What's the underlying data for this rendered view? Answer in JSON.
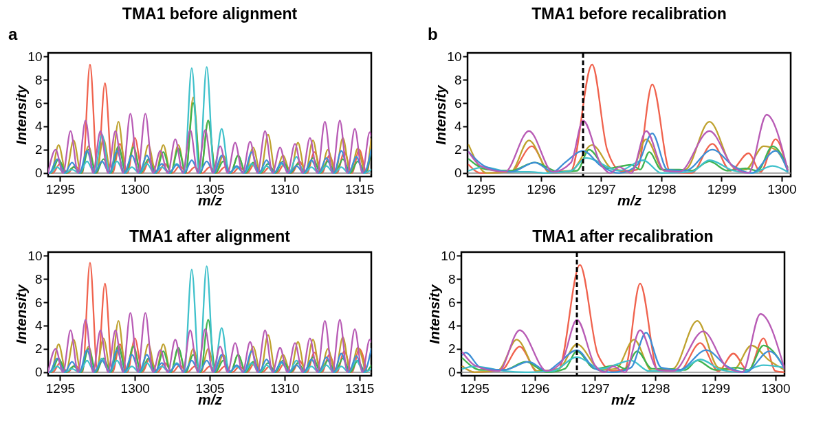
{
  "chart_data": [
    {
      "type": "line",
      "title": "TMA1 before alignment",
      "xlabel": "m/z",
      "ylabel": "Intensity",
      "annotations": [
        "a"
      ],
      "xlim": [
        1294.2,
        1315.8
      ],
      "xticks": [
        1295,
        1300,
        1305,
        1310,
        1315
      ],
      "ylim": [
        -0.3,
        10.3
      ],
      "yticks": [
        0,
        2,
        4,
        6,
        8,
        10
      ],
      "ref_lines": [
        {
          "axis": "y",
          "value": 0,
          "color": "#888888",
          "line_style": "solid"
        }
      ],
      "series": [
        {
          "color": "#f0624d",
          "x": [
            1294.2,
            1294.5,
            1295,
            1295.5,
            1296,
            1296.5,
            1297,
            1297.5,
            1298,
            1298.5,
            1299,
            1299.5,
            1300,
            1300.5,
            1301,
            1301.5,
            1302,
            1302.5,
            1303,
            1303.5,
            1304,
            1304.5,
            1305,
            1305.5,
            1306,
            1306.5,
            1307,
            1307.5,
            1308,
            1308.5,
            1309,
            1309.5,
            1310,
            1310.5,
            1311,
            1311.5,
            1312,
            1312.5,
            1313,
            1313.5,
            1314,
            1314.5,
            1315,
            1315.5,
            1315.8
          ],
          "values": [
            0,
            0,
            0.8,
            0,
            0.6,
            0,
            9.3,
            0,
            7.7,
            0,
            2.5,
            0,
            3.0,
            0,
            1.2,
            0,
            0.8,
            0,
            0.6,
            0,
            0.5,
            0,
            0.5,
            0,
            0.5,
            0,
            0.5,
            0,
            0.8,
            0,
            0.5,
            0,
            0.8,
            0,
            1.0,
            0,
            1.8,
            0,
            1.5,
            0,
            1.8,
            0,
            2.0,
            0,
            2.9
          ]
        },
        {
          "color": "#bfa22e",
          "x": [
            1294.2,
            1294.4,
            1294.9,
            1295.4,
            1295.9,
            1296.4,
            1296.9,
            1297.4,
            1297.9,
            1298.4,
            1298.9,
            1299.4,
            1299.9,
            1300.4,
            1300.9,
            1301.4,
            1301.9,
            1302.4,
            1302.9,
            1303.4,
            1303.9,
            1304.4,
            1304.9,
            1305.4,
            1305.9,
            1306.4,
            1306.9,
            1307.4,
            1307.9,
            1308.4,
            1308.9,
            1309.4,
            1309.9,
            1310.4,
            1310.9,
            1311.4,
            1311.9,
            1312.4,
            1312.9,
            1313.4,
            1313.9,
            1314.4,
            1314.9,
            1315.4,
            1315.8
          ],
          "values": [
            0,
            0,
            2.4,
            0,
            2.8,
            0,
            2.3,
            0,
            2.9,
            0,
            4.4,
            0,
            2.3,
            0,
            2.4,
            0,
            2.4,
            0,
            2.4,
            0,
            6.5,
            0,
            4.5,
            0,
            1.5,
            0,
            1.5,
            0,
            2.2,
            0,
            3.3,
            0,
            1.5,
            0,
            2.6,
            0,
            2.8,
            0,
            2.0,
            0,
            3.0,
            0,
            2.1,
            0,
            2.9
          ]
        },
        {
          "color": "#3fb34f",
          "x": [
            1294.2,
            1294.4,
            1294.9,
            1295.4,
            1295.9,
            1296.4,
            1296.9,
            1297.4,
            1297.9,
            1298.4,
            1298.9,
            1299.4,
            1299.9,
            1300.4,
            1300.9,
            1301.4,
            1301.9,
            1302.4,
            1302.9,
            1303.4,
            1303.9,
            1304.4,
            1304.9,
            1305.4,
            1305.9,
            1306.4,
            1306.9,
            1307.4,
            1307.9,
            1308.4,
            1308.9,
            1309.4,
            1309.9,
            1310.4,
            1310.9,
            1311.4,
            1311.9,
            1312.4,
            1312.9,
            1313.4,
            1313.9,
            1314.4,
            1314.9,
            1315.4,
            1315.8
          ],
          "values": [
            0,
            0,
            1.2,
            0,
            0.5,
            0,
            2.0,
            0,
            1.2,
            0,
            2.3,
            0,
            2.2,
            0,
            1.2,
            0,
            1.8,
            0,
            2.1,
            0,
            6.0,
            0,
            4.5,
            0,
            1.0,
            0,
            1.5,
            0,
            0.9,
            0,
            0.8,
            0,
            1.0,
            0,
            0.8,
            0,
            1.3,
            0,
            1.0,
            0,
            1.2,
            0,
            1.0,
            0,
            2.0
          ]
        },
        {
          "color": "#3fc1cb",
          "x": [
            1294.2,
            1294.3,
            1294.8,
            1295.3,
            1295.8,
            1296.3,
            1296.8,
            1297.3,
            1297.8,
            1298.3,
            1298.8,
            1299.3,
            1299.8,
            1300.3,
            1300.8,
            1301.3,
            1301.8,
            1302.3,
            1302.8,
            1303.3,
            1303.8,
            1304.3,
            1304.8,
            1305.3,
            1305.8,
            1306.3,
            1306.8,
            1307.3,
            1307.8,
            1308.3,
            1308.8,
            1309.3,
            1309.8,
            1310.3,
            1310.8,
            1311.3,
            1311.8,
            1312.3,
            1312.8,
            1313.3,
            1313.8,
            1314.3,
            1314.8,
            1315.3,
            1315.8
          ],
          "values": [
            0,
            0,
            0.5,
            0,
            0.3,
            0,
            1.0,
            0,
            3.3,
            0,
            1.0,
            0,
            0.5,
            0,
            0.8,
            0,
            0.5,
            0,
            0.8,
            0,
            9.0,
            0,
            9.1,
            0,
            3.8,
            0,
            0.5,
            0,
            0.8,
            0,
            0.6,
            0,
            0.8,
            0,
            1.4,
            0,
            0.5,
            0,
            0.6,
            0,
            0.5,
            0,
            1.4,
            0,
            0.3
          ]
        },
        {
          "color": "#3d8fd6",
          "x": [
            1294.2,
            1294.3,
            1294.8,
            1295.3,
            1295.8,
            1296.3,
            1296.8,
            1297.3,
            1297.8,
            1298.3,
            1298.8,
            1299.3,
            1299.8,
            1300.3,
            1300.8,
            1301.3,
            1301.8,
            1302.3,
            1302.8,
            1303.3,
            1303.8,
            1304.3,
            1304.8,
            1305.3,
            1305.8,
            1306.3,
            1306.8,
            1307.3,
            1307.8,
            1308.3,
            1308.8,
            1309.3,
            1309.8,
            1310.3,
            1310.8,
            1311.3,
            1311.8,
            1312.3,
            1312.8,
            1313.3,
            1313.8,
            1314.3,
            1314.8,
            1315.3,
            1315.8
          ],
          "values": [
            0,
            0,
            1.2,
            0,
            0.9,
            0,
            1.9,
            0,
            1.0,
            0,
            1.9,
            0,
            1.5,
            0,
            1.5,
            0,
            0.8,
            0,
            0.7,
            0,
            1.1,
            0,
            1.0,
            0,
            1.5,
            0,
            0.6,
            0,
            1.8,
            0,
            1.1,
            0,
            0.9,
            0,
            0.6,
            0,
            1.1,
            0,
            1.3,
            0,
            1.9,
            0,
            1.4,
            0,
            2.0
          ]
        },
        {
          "color": "#b85bb5",
          "x": [
            1294.2,
            1294.7,
            1295.2,
            1295.7,
            1296.2,
            1296.7,
            1297.2,
            1297.7,
            1298.2,
            1298.7,
            1299.2,
            1299.7,
            1300.2,
            1300.7,
            1301.2,
            1301.7,
            1302.2,
            1302.7,
            1303.2,
            1303.7,
            1304.2,
            1304.7,
            1305.2,
            1305.7,
            1306.2,
            1306.7,
            1307.2,
            1307.7,
            1308.2,
            1308.7,
            1309.2,
            1309.7,
            1310.2,
            1310.7,
            1311.2,
            1311.7,
            1312.2,
            1312.7,
            1313.2,
            1313.7,
            1314.2,
            1314.7,
            1315.2,
            1315.7,
            1315.8
          ],
          "values": [
            0,
            2.0,
            0,
            3.6,
            0,
            4.5,
            0,
            3.6,
            0,
            3.6,
            0,
            5.1,
            0,
            5.1,
            0,
            1.9,
            0,
            2.9,
            0,
            3.7,
            0,
            3.7,
            0,
            2.3,
            0,
            2.6,
            0,
            2.7,
            0,
            3.6,
            0,
            2.2,
            0,
            2.5,
            0,
            3.0,
            0,
            4.4,
            0,
            4.5,
            0,
            3.8,
            0,
            3.5,
            3.2
          ]
        }
      ]
    },
    {
      "type": "line",
      "title": "TMA1 before recalibration",
      "xlabel": "m/z",
      "ylabel": "Intensity",
      "annotations": [
        "b"
      ],
      "xlim": [
        1294.78,
        1300.15
      ],
      "xticks": [
        1295,
        1296,
        1297,
        1298,
        1299,
        1300
      ],
      "ylim": [
        -0.3,
        10.3
      ],
      "yticks": [
        0,
        2,
        4,
        6,
        8,
        10
      ],
      "ref_lines": [
        {
          "axis": "y",
          "value": 0,
          "color": "#888888",
          "line_style": "solid"
        },
        {
          "axis": "x",
          "value": 1296.7,
          "color": "#000000",
          "line_style": "dashed"
        }
      ],
      "series": [
        {
          "color": "#f0624d",
          "x": [
            1294.8,
            1295.0,
            1295.5,
            1295.85,
            1296.15,
            1296.5,
            1296.85,
            1297.1,
            1297.35,
            1297.6,
            1297.85,
            1298.15,
            1298.5,
            1298.85,
            1299.15,
            1299.45,
            1299.65,
            1299.9,
            1300.1
          ],
          "values": [
            0.7,
            0,
            0.1,
            2.3,
            0,
            0.2,
            9.3,
            2.0,
            0.1,
            0.3,
            7.6,
            0.1,
            0,
            2.5,
            0.2,
            1.7,
            0.1,
            2.9,
            0.1
          ]
        },
        {
          "color": "#bfa22e",
          "x": [
            1294.8,
            1295.1,
            1295.5,
            1295.8,
            1296.15,
            1296.5,
            1296.85,
            1297.2,
            1297.5,
            1297.75,
            1298.05,
            1298.4,
            1298.8,
            1299.2,
            1299.4,
            1299.7,
            1299.9,
            1300.1
          ],
          "values": [
            2.4,
            0,
            0.1,
            2.8,
            0.1,
            0.2,
            2.4,
            0.3,
            0.2,
            2.9,
            0.2,
            0.3,
            4.4,
            0.5,
            0.3,
            2.3,
            2.0,
            0.3
          ]
        },
        {
          "color": "#3fb34f",
          "x": [
            1294.8,
            1295.1,
            1295.5,
            1295.9,
            1296.3,
            1296.6,
            1296.8,
            1297.1,
            1297.5,
            1297.65,
            1297.8,
            1298.0,
            1298.3,
            1298.5,
            1298.8,
            1299.1,
            1299.4,
            1299.6,
            1299.85,
            1300.1
          ],
          "values": [
            1.2,
            0.3,
            0.2,
            0.9,
            0.1,
            0.2,
            2.0,
            0.4,
            0.7,
            0.3,
            1.8,
            0.3,
            0.3,
            0.2,
            1.0,
            0.2,
            0.4,
            0.2,
            2.3,
            0.5
          ]
        },
        {
          "color": "#3fc1cb",
          "x": [
            1294.8,
            1295.05,
            1295.5,
            1295.8,
            1296.1,
            1296.5,
            1296.75,
            1297.3,
            1297.7,
            1298.0,
            1298.5,
            1298.8,
            1299.2,
            1299.5,
            1299.85,
            1300.1
          ],
          "values": [
            0.2,
            0.5,
            0.1,
            0.1,
            0,
            0.2,
            1.3,
            0.2,
            1.1,
            0,
            0.1,
            1.1,
            0.2,
            0,
            0.6,
            0.1
          ]
        },
        {
          "color": "#3d8fd6",
          "x": [
            1294.8,
            1295.1,
            1295.5,
            1295.9,
            1296.2,
            1296.4,
            1296.7,
            1297.0,
            1297.3,
            1297.6,
            1297.85,
            1298.1,
            1298.4,
            1298.85,
            1299.2,
            1299.5,
            1299.9,
            1300.1
          ],
          "values": [
            1.8,
            0.5,
            0.1,
            0.9,
            0.1,
            0.9,
            1.9,
            0.6,
            0,
            0.7,
            3.4,
            0.3,
            0.2,
            2.0,
            0.6,
            0,
            1.9,
            0.2
          ]
        },
        {
          "color": "#b85bb5",
          "x": [
            1294.8,
            1295.0,
            1295.4,
            1295.8,
            1296.2,
            1296.5,
            1296.7,
            1297.0,
            1297.15,
            1297.3,
            1297.5,
            1297.75,
            1298.05,
            1298.3,
            1298.8,
            1299.2,
            1299.45,
            1299.75,
            1300.1
          ],
          "values": [
            1.8,
            0.6,
            0.1,
            3.6,
            0.1,
            0.9,
            4.5,
            0.7,
            0,
            0.5,
            0,
            3.6,
            0.2,
            0.1,
            3.6,
            0.5,
            0,
            5.0,
            0.3
          ]
        }
      ]
    },
    {
      "type": "line",
      "title": "TMA1 after alignment",
      "xlabel": "m/z",
      "ylabel": "Intensity",
      "xlim": [
        1294.2,
        1315.8
      ],
      "xticks": [
        1295,
        1300,
        1305,
        1310,
        1315
      ],
      "ylim": [
        -0.3,
        10.3
      ],
      "yticks": [
        0,
        2,
        4,
        6,
        8,
        10
      ],
      "ref_lines": [
        {
          "axis": "y",
          "value": 0,
          "color": "#888888",
          "line_style": "solid"
        }
      ],
      "series": [
        {
          "color": "#f0624d",
          "x": [
            1294.2,
            1294.5,
            1295,
            1295.5,
            1296,
            1296.5,
            1297,
            1297.5,
            1298,
            1298.5,
            1299,
            1299.5,
            1300,
            1300.5,
            1301,
            1301.5,
            1302,
            1302.5,
            1303,
            1303.5,
            1304,
            1304.5,
            1305,
            1305.5,
            1306,
            1306.5,
            1307,
            1307.5,
            1308,
            1308.5,
            1309,
            1309.5,
            1310,
            1310.5,
            1311,
            1311.5,
            1312,
            1312.5,
            1313,
            1313.5,
            1314,
            1314.5,
            1315,
            1315.5
          ],
          "values": [
            0,
            0,
            0.8,
            0,
            0.6,
            0,
            9.4,
            0,
            7.6,
            0,
            2.4,
            0,
            2.9,
            0,
            1.2,
            0,
            0.8,
            0,
            0.6,
            0,
            0.5,
            0,
            0.5,
            0,
            0.5,
            0,
            0.5,
            0,
            0.8,
            0,
            0.5,
            0,
            0.8,
            0,
            1.0,
            0,
            1.7,
            0,
            1.5,
            0,
            1.8,
            0,
            2.0,
            0
          ]
        },
        {
          "color": "#bfa22e",
          "x": [
            1294.2,
            1294.4,
            1294.9,
            1295.4,
            1295.9,
            1296.4,
            1296.9,
            1297.4,
            1297.9,
            1298.4,
            1298.9,
            1299.4,
            1299.9,
            1300.4,
            1300.9,
            1301.4,
            1301.9,
            1302.4,
            1302.9,
            1303.4,
            1303.9,
            1304.4,
            1304.9,
            1305.4,
            1305.9,
            1306.4,
            1306.9,
            1307.4,
            1307.9,
            1308.4,
            1308.9,
            1309.4,
            1309.9,
            1310.4,
            1310.9,
            1311.4,
            1311.9,
            1312.4,
            1312.9,
            1313.4,
            1313.9,
            1314.4,
            1314.9,
            1315.4
          ],
          "values": [
            0,
            0,
            2.4,
            0,
            2.8,
            0,
            2.2,
            0,
            2.9,
            0,
            4.4,
            0,
            2.3,
            0,
            2.4,
            0,
            2.4,
            0,
            2.0,
            0,
            2.0,
            0,
            2.0,
            0,
            1.5,
            0,
            1.5,
            0,
            2.2,
            0,
            3.2,
            0,
            1.5,
            0,
            2.6,
            0,
            2.8,
            0,
            2.0,
            0,
            3.0,
            0,
            2.1,
            0
          ]
        },
        {
          "color": "#3fb34f",
          "x": [
            1294.2,
            1294.4,
            1294.9,
            1295.4,
            1295.9,
            1296.4,
            1296.9,
            1297.4,
            1297.9,
            1298.4,
            1298.9,
            1299.4,
            1299.9,
            1300.4,
            1300.9,
            1301.4,
            1301.9,
            1302.4,
            1302.9,
            1303.4,
            1303.9,
            1304.4,
            1304.9,
            1305.4,
            1305.9,
            1306.4,
            1306.9,
            1307.4,
            1307.9,
            1308.4,
            1308.9,
            1309.4,
            1309.9,
            1310.4,
            1310.9,
            1311.4,
            1311.9,
            1312.4,
            1312.9,
            1313.4,
            1313.9,
            1314.4,
            1314.9,
            1315.4,
            1315.8
          ],
          "values": [
            0,
            0,
            1.2,
            0,
            0.5,
            0,
            2.0,
            0,
            1.2,
            0,
            2.3,
            0,
            2.2,
            0,
            1.2,
            0,
            1.8,
            0,
            2.1,
            0,
            1.5,
            0,
            4.5,
            0,
            1.0,
            0,
            1.5,
            0,
            0.9,
            0,
            0.8,
            0,
            1.0,
            0,
            0.8,
            0,
            1.3,
            0,
            1.0,
            0,
            1.2,
            0,
            1.0,
            0,
            0.6
          ]
        },
        {
          "color": "#3fc1cb",
          "x": [
            1294.2,
            1294.3,
            1294.8,
            1295.3,
            1295.8,
            1296.3,
            1296.8,
            1297.3,
            1297.8,
            1298.3,
            1298.8,
            1299.3,
            1299.8,
            1300.3,
            1300.8,
            1301.3,
            1301.8,
            1302.3,
            1302.8,
            1303.3,
            1303.8,
            1304.3,
            1304.8,
            1305.3,
            1305.8,
            1306.3,
            1306.8,
            1307.3,
            1307.8,
            1308.3,
            1308.8,
            1309.3,
            1309.8,
            1310.3,
            1310.8,
            1311.3,
            1311.8,
            1312.3,
            1312.8,
            1313.3,
            1313.8,
            1314.3,
            1314.8,
            1315.3,
            1315.8
          ],
          "values": [
            0,
            0,
            0.5,
            0,
            0.3,
            0,
            1.0,
            0,
            1.2,
            0,
            1.0,
            0,
            0.5,
            0,
            0.8,
            0,
            0.5,
            0,
            0.8,
            0,
            8.8,
            0,
            9.1,
            0,
            3.8,
            0,
            0.5,
            0,
            0.8,
            0,
            0.6,
            0,
            0.8,
            0,
            1.0,
            0,
            0.5,
            0,
            0.6,
            0,
            0.5,
            0,
            1.0,
            0,
            0.3
          ]
        },
        {
          "color": "#3d8fd6",
          "x": [
            1294.2,
            1294.3,
            1294.8,
            1295.3,
            1295.8,
            1296.3,
            1296.8,
            1297.3,
            1297.8,
            1298.3,
            1298.8,
            1299.3,
            1299.8,
            1300.3,
            1300.8,
            1301.3,
            1301.8,
            1302.3,
            1302.8,
            1303.3,
            1303.8,
            1304.3,
            1304.8,
            1305.3,
            1305.8,
            1306.3,
            1306.8,
            1307.3,
            1307.8,
            1308.3,
            1308.8,
            1309.3,
            1309.8,
            1310.3,
            1310.8,
            1311.3,
            1311.8,
            1312.3,
            1312.8,
            1313.3,
            1313.8,
            1314.3,
            1314.8,
            1315.3,
            1315.8
          ],
          "values": [
            0,
            0,
            1.2,
            0,
            0.9,
            0,
            1.9,
            0,
            1.0,
            0,
            1.9,
            0,
            1.5,
            0,
            1.5,
            0,
            0.8,
            0,
            0.7,
            0,
            1.0,
            0,
            1.0,
            0,
            1.5,
            0,
            0.6,
            0,
            1.8,
            0,
            1.1,
            0,
            0.9,
            0,
            0.6,
            0,
            1.1,
            0,
            1.3,
            0,
            1.6,
            0,
            1.4,
            0,
            2.0
          ]
        },
        {
          "color": "#b85bb5",
          "x": [
            1294.2,
            1294.7,
            1295.2,
            1295.7,
            1296.2,
            1296.7,
            1297.2,
            1297.7,
            1298.2,
            1298.7,
            1299.2,
            1299.7,
            1300.2,
            1300.7,
            1301.2,
            1301.7,
            1302.2,
            1302.7,
            1303.2,
            1303.7,
            1304.2,
            1304.7,
            1305.2,
            1305.7,
            1306.2,
            1306.7,
            1307.2,
            1307.7,
            1308.2,
            1308.7,
            1309.2,
            1309.7,
            1310.2,
            1310.7,
            1311.2,
            1311.7,
            1312.2,
            1312.7,
            1313.2,
            1313.7,
            1314.2,
            1314.7,
            1315.2,
            1315.7,
            1315.8
          ],
          "values": [
            0,
            2.0,
            0,
            3.6,
            0,
            4.5,
            0,
            3.6,
            0,
            3.6,
            0,
            5.1,
            0,
            5.1,
            0,
            1.9,
            0,
            2.8,
            0,
            3.6,
            0,
            3.7,
            0,
            2.2,
            0,
            2.5,
            0,
            2.6,
            0,
            3.6,
            0,
            2.1,
            0,
            2.5,
            0,
            2.9,
            0,
            4.4,
            0,
            4.5,
            0,
            3.7,
            0,
            2.8,
            2.6
          ]
        }
      ]
    },
    {
      "type": "line",
      "title": "TMA1 after recalibration",
      "xlabel": "m/z",
      "ylabel": "Intensity",
      "xlim": [
        1294.78,
        1300.15
      ],
      "xticks": [
        1295,
        1296,
        1297,
        1298,
        1299,
        1300
      ],
      "ylim": [
        -0.3,
        10.3
      ],
      "yticks": [
        0,
        2,
        4,
        6,
        8,
        10
      ],
      "ref_lines": [
        {
          "axis": "y",
          "value": 0,
          "color": "#888888",
          "line_style": "solid"
        },
        {
          "axis": "x",
          "value": 1296.7,
          "color": "#000000",
          "line_style": "dashed"
        }
      ],
      "series": [
        {
          "color": "#f0624d",
          "x": [
            1294.8,
            1295.0,
            1295.45,
            1295.75,
            1296.05,
            1296.4,
            1296.75,
            1297.05,
            1297.3,
            1297.5,
            1297.75,
            1298.05,
            1298.4,
            1298.75,
            1299.05,
            1299.3,
            1299.55,
            1299.8,
            1300.0,
            1300.15
          ],
          "values": [
            0.5,
            0,
            0.2,
            2.2,
            0,
            0.3,
            9.2,
            1.5,
            0.1,
            0.3,
            7.6,
            0.1,
            0.1,
            2.5,
            0.1,
            1.6,
            0.1,
            2.9,
            0.1,
            0
          ]
        },
        {
          "color": "#bfa22e",
          "x": [
            1294.8,
            1295.0,
            1295.4,
            1295.7,
            1296.05,
            1296.4,
            1296.7,
            1297.1,
            1297.35,
            1297.65,
            1297.95,
            1298.3,
            1298.7,
            1299.05,
            1299.3,
            1299.6,
            1299.9,
            1300.15
          ],
          "values": [
            0.5,
            0,
            0.2,
            2.8,
            0.1,
            0.3,
            2.4,
            0.2,
            0.3,
            2.8,
            0.1,
            0.3,
            4.4,
            0.4,
            0.2,
            2.3,
            1.0,
            0.2
          ]
        },
        {
          "color": "#3fb34f",
          "x": [
            1294.8,
            1295.1,
            1295.5,
            1295.85,
            1296.2,
            1296.5,
            1296.7,
            1297.0,
            1297.35,
            1297.5,
            1297.7,
            1297.95,
            1298.2,
            1298.5,
            1298.7,
            1299.0,
            1299.35,
            1299.55,
            1299.8,
            1300.15
          ],
          "values": [
            1.2,
            0.2,
            0.2,
            0.9,
            0,
            0.3,
            1.8,
            0.3,
            0.6,
            0.3,
            1.8,
            0.3,
            0.3,
            0.2,
            1.0,
            0.2,
            0.4,
            0.2,
            2.3,
            0.4
          ]
        },
        {
          "color": "#3fc1cb",
          "x": [
            1294.8,
            1295.0,
            1295.5,
            1295.9,
            1296.3,
            1296.7,
            1297.1,
            1297.6,
            1297.9,
            1298.4,
            1298.75,
            1299.1,
            1299.4,
            1299.8,
            1300.15
          ],
          "values": [
            0.3,
            0.5,
            0.1,
            0,
            0.1,
            1.3,
            0.3,
            1.0,
            0.1,
            0.1,
            1.1,
            0.2,
            0,
            0.6,
            0.4
          ]
        },
        {
          "color": "#3d8fd6",
          "x": [
            1294.8,
            1294.85,
            1295.1,
            1295.5,
            1295.9,
            1296.2,
            1296.4,
            1296.7,
            1297.0,
            1297.3,
            1297.6,
            1297.85,
            1298.1,
            1298.4,
            1298.85,
            1299.2,
            1299.5,
            1299.9,
            1300.15
          ],
          "values": [
            1.5,
            1.7,
            0.4,
            0.2,
            0.9,
            0.1,
            0.8,
            1.9,
            0.3,
            0,
            0.4,
            3.4,
            0.4,
            0.2,
            1.9,
            0.5,
            0,
            1.8,
            0.3
          ]
        },
        {
          "color": "#b85bb5",
          "x": [
            1294.8,
            1295.0,
            1295.4,
            1295.75,
            1296.2,
            1296.45,
            1296.7,
            1297.0,
            1297.15,
            1297.3,
            1297.5,
            1297.75,
            1298.05,
            1298.3,
            1298.8,
            1299.2,
            1299.45,
            1299.75,
            1300.15
          ],
          "values": [
            1.7,
            0.6,
            0.1,
            3.6,
            0.1,
            0.9,
            4.5,
            0.6,
            0,
            0.5,
            0,
            3.6,
            0.2,
            0.1,
            3.5,
            0.4,
            0,
            5.0,
            0.3
          ]
        }
      ]
    }
  ]
}
